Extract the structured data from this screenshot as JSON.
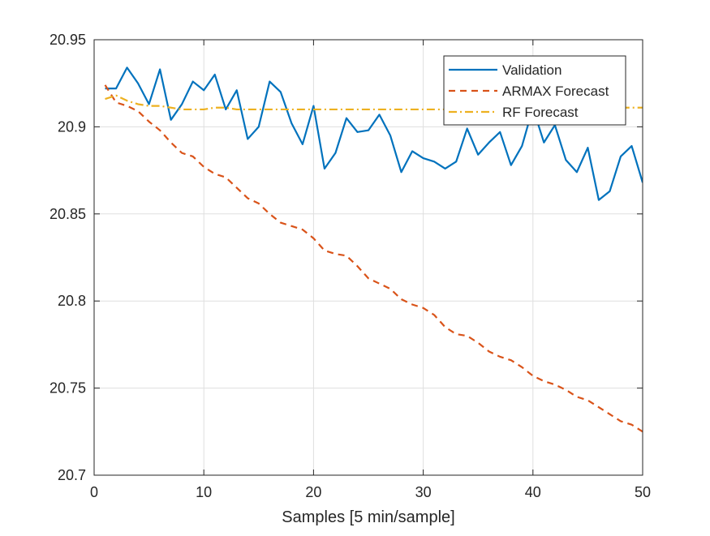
{
  "chart_data": {
    "type": "line",
    "xlabel": "Samples [5 min/sample]",
    "ylabel": "",
    "title": "",
    "xlim": [
      0,
      50
    ],
    "ylim": [
      20.7,
      20.95
    ],
    "xticks": [
      0,
      10,
      20,
      30,
      40,
      50
    ],
    "yticks": [
      20.7,
      20.75,
      20.8,
      20.85,
      20.9,
      20.95
    ],
    "xtick_labels": [
      "0",
      "10",
      "20",
      "30",
      "40",
      "50"
    ],
    "ytick_labels": [
      "20.7",
      "20.75",
      "20.8",
      "20.85",
      "20.9",
      "20.95"
    ],
    "grid": true,
    "legend_position": "top-right",
    "x": [
      1,
      2,
      3,
      4,
      5,
      6,
      7,
      8,
      9,
      10,
      11,
      12,
      13,
      14,
      15,
      16,
      17,
      18,
      19,
      20,
      21,
      22,
      23,
      24,
      25,
      26,
      27,
      28,
      29,
      30,
      31,
      32,
      33,
      34,
      35,
      36,
      37,
      38,
      39,
      40,
      41,
      42,
      43,
      44,
      45,
      46,
      47,
      48,
      49,
      50
    ],
    "series": [
      {
        "name": "Validation",
        "color": "#0072BD",
        "style": "solid",
        "values": [
          20.922,
          20.922,
          20.934,
          20.925,
          20.913,
          20.933,
          20.904,
          20.913,
          20.926,
          20.921,
          20.93,
          20.91,
          20.921,
          20.893,
          20.9,
          20.926,
          20.92,
          20.902,
          20.89,
          20.912,
          20.876,
          20.885,
          20.905,
          20.897,
          20.898,
          20.907,
          20.895,
          20.874,
          20.886,
          20.882,
          20.88,
          20.876,
          20.88,
          20.899,
          20.884,
          20.891,
          20.897,
          20.878,
          20.889,
          20.911,
          20.891,
          20.901,
          20.881,
          20.874,
          20.888,
          20.858,
          20.863,
          20.883,
          20.889,
          20.868
        ]
      },
      {
        "name": "ARMAX Forecast",
        "color": "#D95319",
        "style": "dashed",
        "values": [
          20.924,
          20.914,
          20.912,
          20.909,
          20.903,
          20.898,
          20.891,
          20.885,
          20.883,
          20.877,
          20.873,
          20.871,
          20.865,
          20.859,
          20.856,
          20.85,
          20.845,
          20.843,
          20.841,
          20.836,
          20.829,
          20.827,
          20.826,
          20.82,
          20.813,
          20.81,
          20.807,
          20.801,
          20.798,
          20.796,
          20.792,
          20.785,
          20.781,
          20.78,
          20.776,
          20.771,
          20.768,
          20.766,
          20.762,
          20.757,
          20.754,
          20.752,
          20.749,
          20.745,
          20.743,
          20.739,
          20.735,
          20.731,
          20.729,
          20.725
        ]
      },
      {
        "name": "RF Forecast",
        "color": "#EDB120",
        "style": "dashdot",
        "values": [
          20.916,
          20.918,
          20.915,
          20.913,
          20.912,
          20.912,
          20.911,
          20.91,
          20.91,
          20.91,
          20.911,
          20.911,
          20.91,
          20.91,
          20.91,
          20.91,
          20.91,
          20.91,
          20.91,
          20.91,
          20.91,
          20.91,
          20.91,
          20.91,
          20.91,
          20.91,
          20.91,
          20.91,
          20.91,
          20.91,
          20.91,
          20.91,
          20.911,
          20.911,
          20.911,
          20.911,
          20.911,
          20.911,
          20.911,
          20.911,
          20.911,
          20.911,
          20.911,
          20.911,
          20.911,
          20.911,
          20.911,
          20.911,
          20.911,
          20.911
        ]
      }
    ]
  }
}
